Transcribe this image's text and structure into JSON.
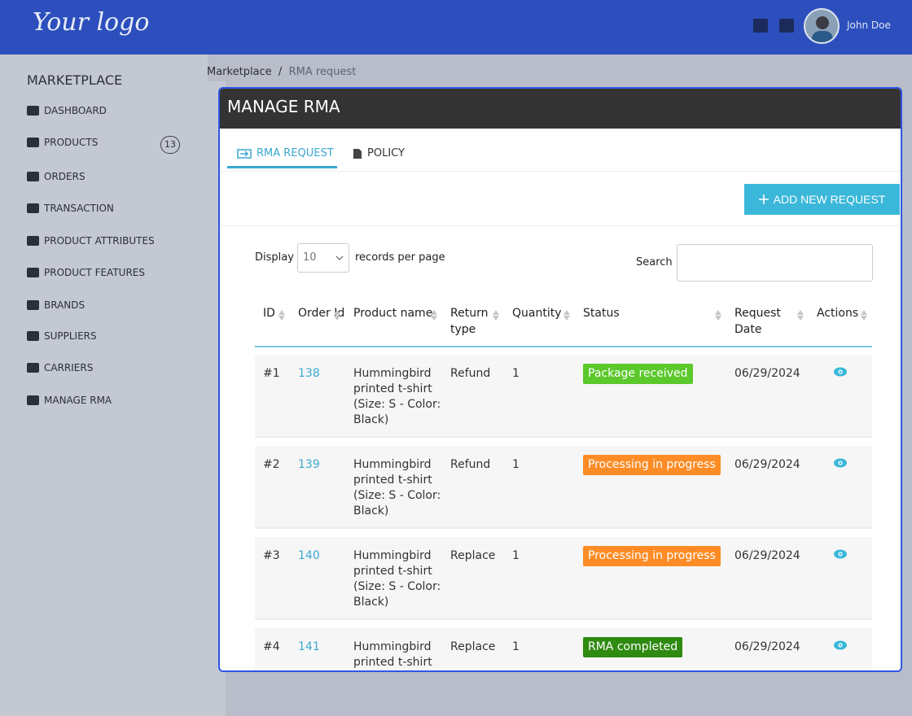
{
  "header": {
    "logo": "Your logo",
    "user": "John Doe"
  },
  "sidebar": {
    "title": "MARKETPLACE",
    "items": [
      {
        "label": "DASHBOARD"
      },
      {
        "label": "PRODUCTS",
        "badge": "13"
      },
      {
        "label": "ORDERS"
      },
      {
        "label": "TRANSACTION"
      },
      {
        "label": "PRODUCT ATTRIBUTES"
      },
      {
        "label": "PRODUCT FEATURES"
      },
      {
        "label": "BRANDS"
      },
      {
        "label": "SUPPLIERS"
      },
      {
        "label": "CARRIERS"
      },
      {
        "label": "MANAGE RMA"
      }
    ]
  },
  "breadcrumb": [
    "Marketplace",
    "RMA request"
  ],
  "panel": {
    "title": "MANAGE RMA",
    "tabs": [
      "RMA REQUEST",
      "POLICY"
    ],
    "add_button": "ADD NEW REQUEST",
    "display_label": "Display",
    "per_page": "10",
    "records_label": "records per page",
    "search_label": "Search",
    "table": {
      "columns": [
        "ID",
        "Order Id",
        "Product name",
        "Return type",
        "Quantity",
        "Status",
        "Request Date",
        "Actions"
      ],
      "rows": [
        [
          "#1",
          "138",
          "Hummingbird printed t-shirt (Size: S - Color: Black)",
          "Refund",
          "1",
          "Package received",
          "06/29/2024"
        ],
        [
          "#2",
          "139",
          "Hummingbird printed t-shirt (Size: S - Color: Black)",
          "Refund",
          "1",
          "Processing in progress",
          "06/29/2024"
        ],
        [
          "#3",
          "140",
          "Hummingbird printed t-shirt (Size: S - Color: Black)",
          "Replace",
          "1",
          "Processing in progress",
          "06/29/2024"
        ],
        [
          "#4",
          "141",
          "Hummingbird printed t-shirt (Size: S - Color: Black)",
          "Replace",
          "1",
          "RMA completed",
          "06/29/2024"
        ]
      ]
    }
  }
}
